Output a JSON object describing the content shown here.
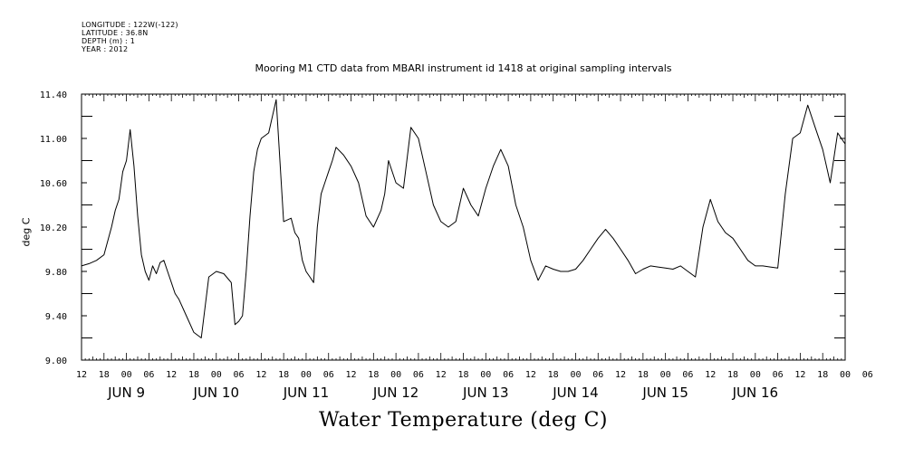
{
  "header": {
    "longitude": "LONGITUDE : 122W(-122)",
    "latitude": "LATITUDE : 36.8N",
    "depth": "DEPTH (m) : 1",
    "year": "YEAR : 2012"
  },
  "chart_data": {
    "type": "line",
    "title": "Mooring M1 CTD data from MBARI instrument id 1418 at original sampling intervals",
    "xlabel": "Water Temperature (deg C)",
    "ylabel": "deg C",
    "ylim": [
      9.0,
      11.4
    ],
    "yticks": [
      "9.00",
      "9.40",
      "9.80",
      "10.20",
      "10.60",
      "11.00",
      "11.40"
    ],
    "xrange_hours": [
      "2012-06-08T12:00",
      "2012-06-17T00:00"
    ],
    "hour_ticks": [
      "12",
      "18",
      "00",
      "06",
      "12",
      "18",
      "00",
      "06",
      "12",
      "18",
      "00",
      "06",
      "12",
      "18",
      "00",
      "06",
      "12",
      "18",
      "00",
      "06",
      "12",
      "18",
      "00",
      "06",
      "12",
      "18",
      "00",
      "06",
      "12",
      "18",
      "00",
      "06",
      "12",
      "18",
      "00",
      "06"
    ],
    "day_labels": [
      "JUN  9",
      "JUN 10",
      "JUN 11",
      "JUN 12",
      "JUN 13",
      "JUN 14",
      "JUN 15",
      "JUN 16"
    ],
    "grid": false,
    "series": [
      {
        "color": "#000000",
        "x_hours_since_2012-06-08T12:00": [
          0,
          2,
          4,
          6,
          8,
          9,
          10,
          11,
          12,
          13,
          14,
          15,
          16,
          17,
          18,
          19,
          20,
          21,
          22,
          23,
          24,
          25,
          26,
          28,
          30,
          32,
          34,
          36,
          38,
          40,
          41,
          42,
          43,
          44,
          45,
          46,
          47,
          48,
          50,
          52,
          54,
          56,
          57,
          58,
          59,
          60,
          61,
          62,
          63,
          64,
          65,
          66,
          67,
          68,
          70,
          72,
          74,
          76,
          78,
          80,
          81,
          82,
          84,
          86,
          88,
          90,
          92,
          94,
          96,
          98,
          100,
          102,
          104,
          106,
          108,
          110,
          112,
          114,
          116,
          118,
          120,
          122,
          124,
          126,
          128,
          130,
          132,
          134,
          136,
          138,
          140,
          142,
          144,
          146,
          148,
          150,
          152,
          154,
          156,
          158,
          160,
          162,
          164,
          166,
          168,
          170,
          172,
          174,
          176,
          178,
          180,
          182,
          184,
          186,
          188,
          190,
          192,
          194,
          196,
          198,
          200,
          202,
          204
        ],
        "values": [
          9.85,
          9.87,
          9.9,
          9.95,
          10.2,
          10.35,
          10.45,
          10.7,
          10.8,
          11.08,
          10.75,
          10.3,
          9.95,
          9.8,
          9.72,
          9.85,
          9.78,
          9.88,
          9.9,
          9.8,
          9.7,
          9.6,
          9.55,
          9.4,
          9.25,
          9.2,
          9.75,
          9.8,
          9.78,
          9.7,
          9.32,
          9.35,
          9.4,
          9.8,
          10.3,
          10.7,
          10.9,
          11.0,
          11.05,
          11.35,
          10.25,
          10.28,
          10.15,
          10.1,
          9.9,
          9.8,
          9.75,
          9.7,
          10.2,
          10.5,
          10.6,
          10.7,
          10.8,
          10.92,
          10.85,
          10.75,
          10.6,
          10.3,
          10.2,
          10.35,
          10.5,
          10.8,
          10.6,
          10.55,
          11.1,
          11.0,
          10.7,
          10.4,
          10.25,
          10.2,
          10.25,
          10.55,
          10.4,
          10.3,
          10.55,
          10.75,
          10.9,
          10.75,
          10.4,
          10.2,
          9.9,
          9.72,
          9.85,
          9.82,
          9.8,
          9.8,
          9.82,
          9.9,
          10.0,
          10.1,
          10.18,
          10.1,
          10.0,
          9.9,
          9.78,
          9.82,
          9.85,
          9.84,
          9.83,
          9.82,
          9.85,
          9.8,
          9.75,
          10.2,
          10.45,
          10.25,
          10.15,
          10.1,
          10.0,
          9.9,
          9.85,
          9.85,
          9.84,
          9.83,
          10.5,
          11.0,
          11.05,
          11.3,
          11.1,
          10.9,
          10.6,
          11.05,
          10.95
        ]
      }
    ]
  }
}
